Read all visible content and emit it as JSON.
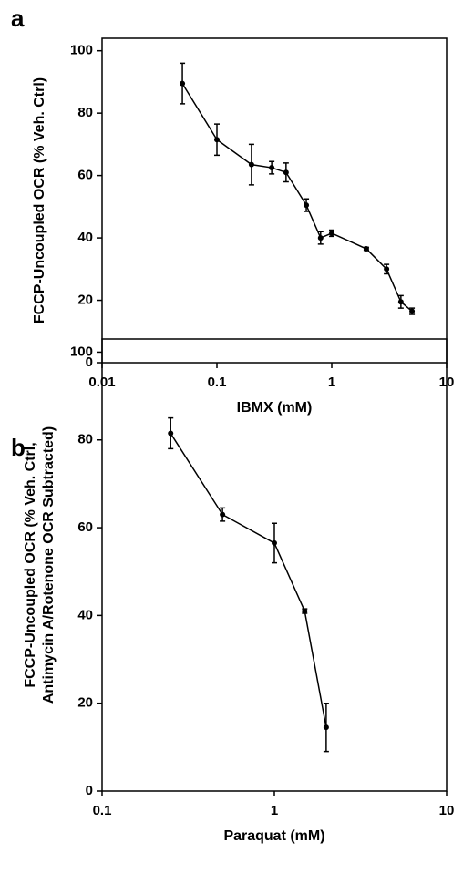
{
  "chart_data": [
    {
      "type": "line",
      "panel": "a",
      "y_label": [
        "FCCP-Uncoupled OCR (% Veh. Ctrl)"
      ],
      "x_label": "IBMX (mM)",
      "x_scale": "log",
      "xlim": [
        0.01,
        10
      ],
      "xticks": [
        0.01,
        0.1,
        1,
        10
      ],
      "ylim": [
        0,
        104
      ],
      "yticks": [
        0,
        20,
        40,
        60,
        80,
        100
      ],
      "x": [
        0.05,
        0.1,
        0.2,
        0.3,
        0.4,
        0.6,
        0.8,
        1,
        2,
        3,
        4,
        5
      ],
      "series": [
        {
          "color": "#000000",
          "values": [
            89.5,
            71.5,
            63.5,
            62.5,
            61,
            50.5,
            40,
            41.5,
            36.5,
            30,
            19.5,
            16.5
          ],
          "errors": [
            6.5,
            5,
            6.5,
            2,
            3,
            2,
            2,
            1,
            0.5,
            1.5,
            2,
            1
          ]
        }
      ]
    },
    {
      "type": "line",
      "panel": "b",
      "y_label": [
        "FCCP-Uncoupled OCR (% Veh. Ctrl,",
        "Antimycin A/Rotenone OCR Subtracted)"
      ],
      "x_label": "Paraquat (mM)",
      "x_scale": "log",
      "xlim": [
        0.1,
        10
      ],
      "xticks": [
        0.1,
        1,
        10
      ],
      "ylim": [
        0,
        103
      ],
      "yticks": [
        0,
        20,
        40,
        60,
        80,
        100
      ],
      "x": [
        0.25,
        0.5,
        1,
        1.5,
        2
      ],
      "series": [
        {
          "color": "#000000",
          "values": [
            81.5,
            63,
            56.5,
            41,
            14.5
          ],
          "errors": [
            3.5,
            1.5,
            4.5,
            0.5,
            5.5
          ]
        }
      ]
    }
  ]
}
